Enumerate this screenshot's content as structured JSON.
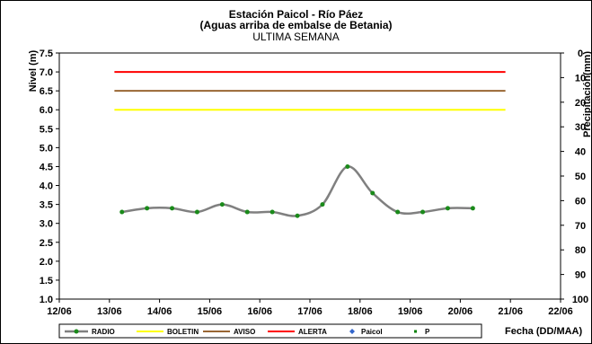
{
  "chart_data": {
    "type": "line",
    "title": "Estación Paicol  - Río Páez",
    "subtitle": "(Aguas arriba de embalse de Betania)",
    "period": "ULTIMA SEMANA",
    "ylabel": "Nivel (m)",
    "y2label": "Precipitación(mm)",
    "xlabel": "Fecha  (DD/MAA)",
    "xlim": [
      0,
      10
    ],
    "ylim": [
      1.0,
      7.5
    ],
    "y2lim": [
      0,
      100
    ],
    "y2_inverted": true,
    "x_ticks": [
      "12/06",
      "13/06",
      "14/06",
      "15/06",
      "16/06",
      "17/06",
      "18/06",
      "19/06",
      "20/06",
      "21/06",
      "22/06"
    ],
    "y_ticks": [
      "1.0",
      "1.5",
      "2.0",
      "2.5",
      "3.0",
      "3.5",
      "4.0",
      "4.5",
      "5.0",
      "5.5",
      "6.0",
      "6.5",
      "7.0",
      "7.5"
    ],
    "y2_ticks": [
      "0",
      "10",
      "20",
      "30",
      "40",
      "50",
      "60",
      "70",
      "80",
      "90",
      "100"
    ],
    "grid": false,
    "legend_position": "bottom",
    "series": [
      {
        "name": "RADIO",
        "color": "#808080",
        "marker_color": "#1a8a1a",
        "x": [
          1.25,
          1.75,
          2.25,
          2.75,
          3.25,
          3.75,
          4.25,
          4.75,
          5.25,
          5.75,
          6.25,
          6.75,
          7.25,
          7.75,
          8.25
        ],
        "values": [
          3.3,
          3.4,
          3.4,
          3.3,
          3.5,
          3.3,
          3.3,
          3.2,
          3.5,
          4.5,
          3.8,
          3.3,
          3.3,
          3.4,
          3.4
        ]
      },
      {
        "name": "BOLETIN",
        "color": "#ffff00",
        "x": [
          1.1,
          8.9
        ],
        "values": [
          6.0,
          6.0
        ]
      },
      {
        "name": "AVISO",
        "color": "#996633",
        "x": [
          1.1,
          8.9
        ],
        "values": [
          6.5,
          6.5
        ]
      },
      {
        "name": "ALERTA",
        "color": "#ff0000",
        "x": [
          1.1,
          8.9
        ],
        "values": [
          7.0,
          7.0
        ]
      },
      {
        "name": "Paicol",
        "color": "#3366cc",
        "values": []
      },
      {
        "name": "P",
        "color": "#008000",
        "values": []
      }
    ]
  }
}
